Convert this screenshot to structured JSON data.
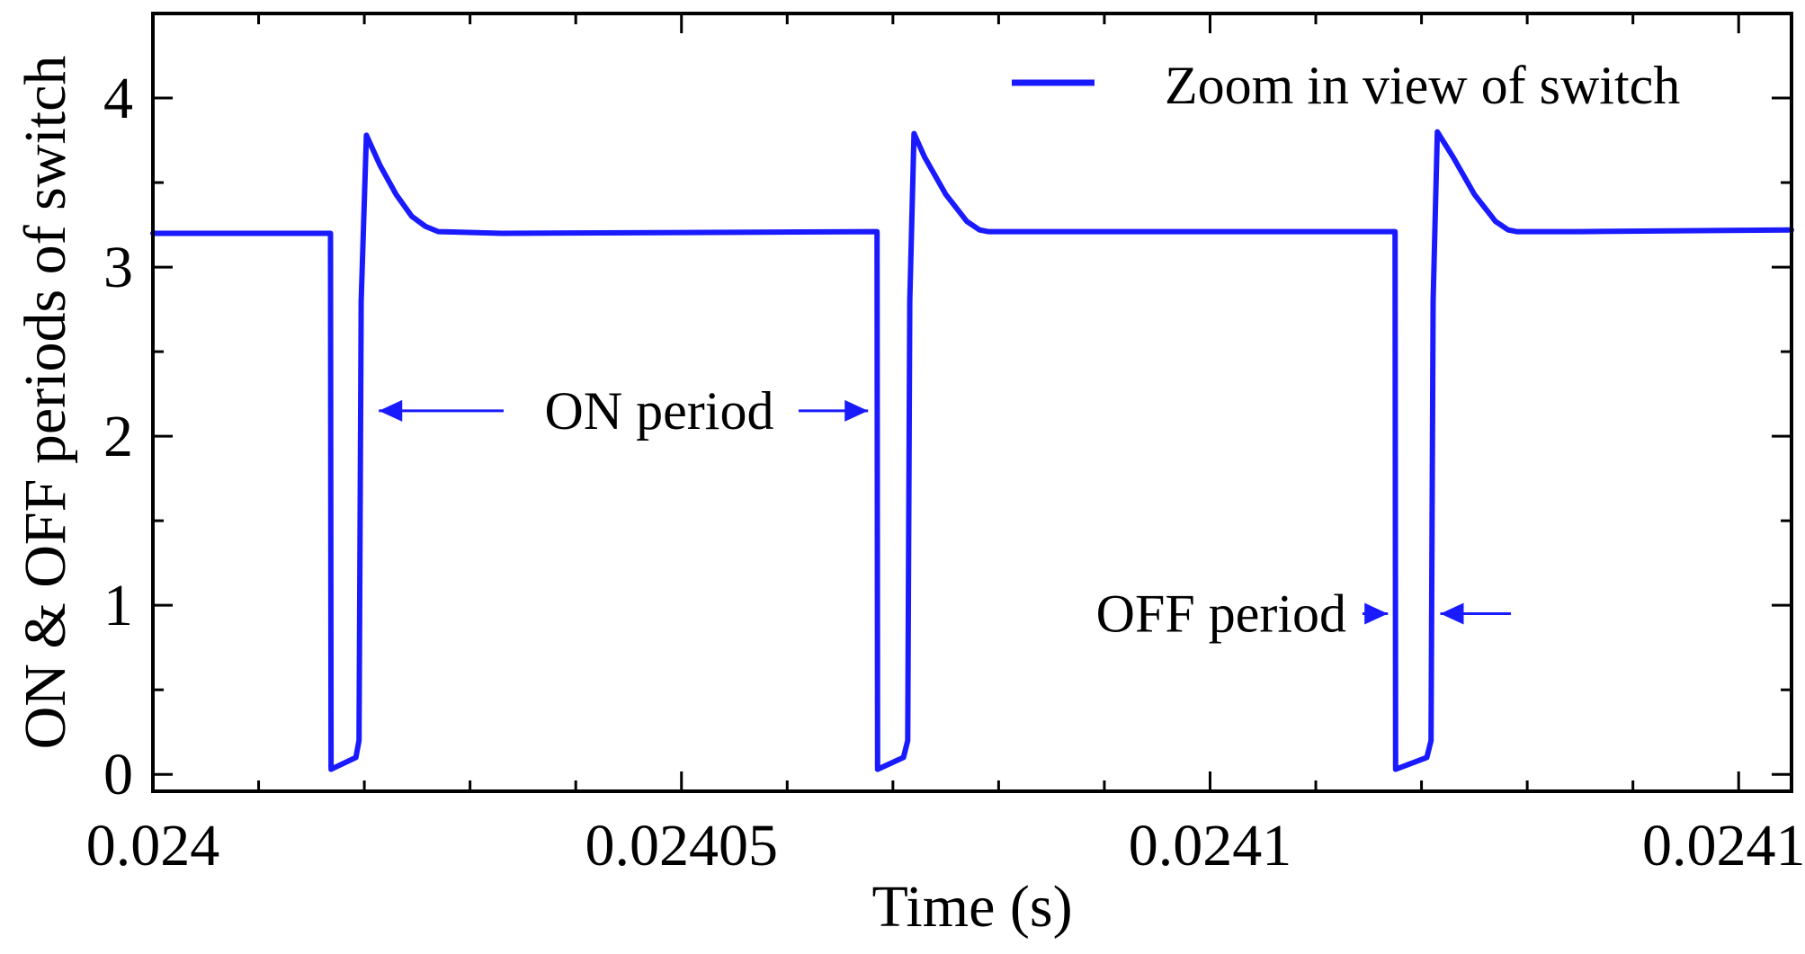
{
  "chart_data": {
    "type": "line",
    "title": "",
    "xlabel": "Time (s)",
    "ylabel": "ON & OFF periods of switch",
    "xlim": [
      0.024,
      0.024155
    ],
    "ylim": [
      -0.1,
      4.5
    ],
    "x_ticks": [
      0.024,
      0.02405,
      0.0241,
      0.02415
    ],
    "x_tick_labels": [
      "0.024",
      "0.02405",
      "0.0241",
      "0.02415"
    ],
    "y_ticks": [
      0,
      1,
      2,
      3,
      4
    ],
    "y_tick_labels": [
      "0",
      "1",
      "2",
      "3",
      "4"
    ],
    "grid": false,
    "legend_position": "top-right",
    "colors": {
      "series": "#1a1aff",
      "axes": "#000000"
    },
    "series": [
      {
        "name": "Zoom in view of switch",
        "x": [
          0.024,
          0.0240168,
          0.02401685,
          0.0240192,
          0.0240195,
          0.0240197,
          0.0240202,
          0.0240215,
          0.024023,
          0.0240245,
          0.0240258,
          0.024027,
          0.024033,
          0.0240685,
          0.02406855,
          0.024071,
          0.0240714,
          0.0240716,
          0.024072,
          0.024073,
          0.024075,
          0.024077,
          0.0240782,
          0.024079,
          0.024085,
          0.0241175,
          0.02411755,
          0.0241205,
          0.0241209,
          0.0241211,
          0.0241215,
          0.024123,
          0.024125,
          0.024127,
          0.0241282,
          0.024129,
          0.024135,
          0.024155
        ],
        "y": [
          3.2,
          3.2,
          0.03,
          0.1,
          0.2,
          2.8,
          3.78,
          3.6,
          3.43,
          3.3,
          3.24,
          3.21,
          3.2,
          3.21,
          0.03,
          0.1,
          0.2,
          2.8,
          3.79,
          3.65,
          3.43,
          3.27,
          3.22,
          3.21,
          3.21,
          3.21,
          0.03,
          0.1,
          0.2,
          2.8,
          3.8,
          3.65,
          3.43,
          3.27,
          3.22,
          3.21,
          3.21,
          3.22
        ]
      }
    ],
    "annotations": [
      {
        "text": "ON period",
        "arrow_from_x": 0.0240195,
        "arrow_to_x": 0.0240685,
        "y": 2.15
      },
      {
        "text": "OFF period",
        "arrow_left_x": 0.0241175,
        "arrow_right_x": 0.0241211,
        "y": 0.95
      }
    ]
  }
}
